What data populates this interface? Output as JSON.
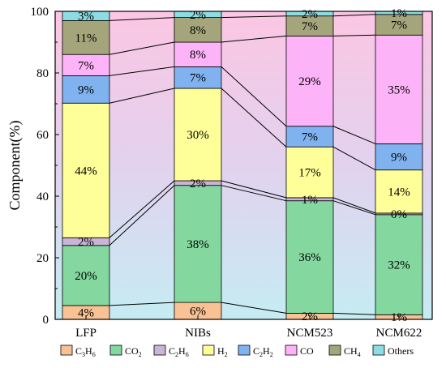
{
  "chart_data": {
    "type": "bar",
    "stacked": true,
    "categories": [
      "LFP",
      "NIBs",
      "NCM523",
      "NCM622"
    ],
    "ylabel": "Component(%)",
    "ylim": [
      0,
      100
    ],
    "yticks": [
      0,
      20,
      40,
      60,
      80,
      100
    ],
    "grid": false,
    "legend_position": "bottom",
    "series": [
      {
        "name": "C3H6",
        "legend_parts": [
          [
            "C",
            ""
          ],
          [
            "3",
            "sub"
          ],
          [
            "H",
            ""
          ],
          [
            "6",
            "sub"
          ]
        ],
        "color": "#f9c294",
        "values": [
          4.5,
          5.5,
          2,
          1.5
        ],
        "labels": [
          "4%",
          "6%",
          "2%",
          "1%"
        ]
      },
      {
        "name": "CO2",
        "legend_parts": [
          [
            "CO",
            ""
          ],
          [
            "2",
            "sub"
          ]
        ],
        "color": "#84d79f",
        "values": [
          19.5,
          38,
          36.5,
          32.5
        ],
        "labels": [
          "20%",
          "38%",
          "36%",
          "32%"
        ]
      },
      {
        "name": "C2H6",
        "legend_parts": [
          [
            "C",
            ""
          ],
          [
            "2",
            "sub"
          ],
          [
            "H",
            ""
          ],
          [
            "6",
            "sub"
          ]
        ],
        "color": "#cbb4d9",
        "values": [
          2.5,
          1.5,
          1,
          0.5
        ],
        "labels": [
          "2%",
          "2%",
          "1%",
          "0%"
        ]
      },
      {
        "name": "H2",
        "legend_parts": [
          [
            "H",
            ""
          ],
          [
            "2",
            "sub"
          ]
        ],
        "color": "#ffff99",
        "values": [
          43.7,
          30,
          16.5,
          14
        ],
        "labels": [
          "44%",
          "30%",
          "17%",
          "14%"
        ]
      },
      {
        "name": "C2H2",
        "legend_parts": [
          [
            "C",
            ""
          ],
          [
            "2",
            "sub"
          ],
          [
            "H",
            ""
          ],
          [
            "2",
            "sub"
          ]
        ],
        "color": "#80b2ef",
        "values": [
          8.9,
          7,
          6.7,
          8.5
        ],
        "labels": [
          "9%",
          "7%",
          "7%",
          "9%"
        ]
      },
      {
        "name": "CO",
        "legend_parts": [
          [
            "CO",
            ""
          ]
        ],
        "color": "#fdb3f7",
        "values": [
          6.9,
          8,
          29.3,
          35.3
        ],
        "labels": [
          "7%",
          "8%",
          "29%",
          "35%"
        ]
      },
      {
        "name": "CH4",
        "legend_parts": [
          [
            "CH",
            ""
          ],
          [
            "4",
            "sub"
          ]
        ],
        "color": "#a5a57c",
        "values": [
          11,
          8,
          6.5,
          6.7
        ],
        "labels": [
          "11%",
          "8%",
          "7%",
          "7%"
        ]
      },
      {
        "name": "Others",
        "legend_parts": [
          [
            "Others",
            ""
          ]
        ],
        "color": "#8cdde3",
        "values": [
          3,
          2,
          1.5,
          1
        ],
        "labels": [
          "3%",
          "2%",
          "2%",
          "1%"
        ]
      }
    ]
  }
}
